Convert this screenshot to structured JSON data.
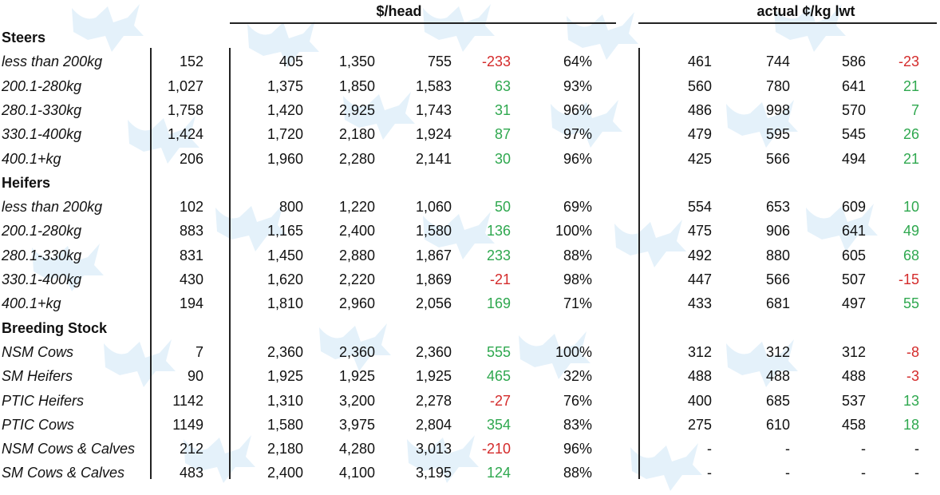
{
  "headers": {
    "dollar_head": "$/head",
    "cents_kg": "actual ¢/kg lwt"
  },
  "colors": {
    "positive": "#2fa84f",
    "negative": "#d42b2b",
    "watermark": "#cfe6f7"
  },
  "watermark_icon": "cattle-logo-icon",
  "rows": [
    {
      "type": "section",
      "label": "Steers"
    },
    {
      "type": "data",
      "label": "less than 200kg",
      "v": [
        "152",
        "405",
        "1,350",
        "755",
        "-233",
        "64%",
        "461",
        "744",
        "586",
        "-23"
      ]
    },
    {
      "type": "data",
      "label": "200.1-280kg",
      "v": [
        "1,027",
        "1,375",
        "1,850",
        "1,583",
        "63",
        "93%",
        "560",
        "780",
        "641",
        "21"
      ]
    },
    {
      "type": "data",
      "label": "280.1-330kg",
      "v": [
        "1,758",
        "1,420",
        "2,925",
        "1,743",
        "31",
        "96%",
        "486",
        "998",
        "570",
        "7"
      ]
    },
    {
      "type": "data",
      "label": "330.1-400kg",
      "v": [
        "1,424",
        "1,720",
        "2,180",
        "1,924",
        "87",
        "97%",
        "479",
        "595",
        "545",
        "26"
      ]
    },
    {
      "type": "data",
      "label": "400.1+kg",
      "v": [
        "206",
        "1,960",
        "2,280",
        "2,141",
        "30",
        "96%",
        "425",
        "566",
        "494",
        "21"
      ]
    },
    {
      "type": "section",
      "label": "Heifers"
    },
    {
      "type": "data",
      "label": "less than 200kg",
      "v": [
        "102",
        "800",
        "1,220",
        "1,060",
        "50",
        "69%",
        "554",
        "653",
        "609",
        "10"
      ]
    },
    {
      "type": "data",
      "label": "200.1-280kg",
      "v": [
        "883",
        "1,165",
        "2,400",
        "1,580",
        "136",
        "100%",
        "475",
        "906",
        "641",
        "49"
      ]
    },
    {
      "type": "data",
      "label": "280.1-330kg",
      "v": [
        "831",
        "1,450",
        "2,880",
        "1,867",
        "233",
        "88%",
        "492",
        "880",
        "605",
        "68"
      ]
    },
    {
      "type": "data",
      "label": "330.1-400kg",
      "v": [
        "430",
        "1,620",
        "2,220",
        "1,869",
        "-21",
        "98%",
        "447",
        "566",
        "507",
        "-15"
      ]
    },
    {
      "type": "data",
      "label": "400.1+kg",
      "v": [
        "194",
        "1,810",
        "2,960",
        "2,056",
        "169",
        "71%",
        "433",
        "681",
        "497",
        "55"
      ]
    },
    {
      "type": "section",
      "label": "Breeding Stock"
    },
    {
      "type": "data",
      "label": "NSM Cows",
      "v": [
        "7",
        "2,360",
        "2,360",
        "2,360",
        "555",
        "100%",
        "312",
        "312",
        "312",
        "-8"
      ]
    },
    {
      "type": "data",
      "label": "SM Heifers",
      "v": [
        "90",
        "1,925",
        "1,925",
        "1,925",
        "465",
        "32%",
        "488",
        "488",
        "488",
        "-3"
      ]
    },
    {
      "type": "data",
      "label": "PTIC Heifers",
      "v": [
        "1142",
        "1,310",
        "3,200",
        "2,278",
        "-27",
        "76%",
        "400",
        "685",
        "537",
        "13"
      ]
    },
    {
      "type": "data",
      "label": "PTIC Cows",
      "v": [
        "1149",
        "1,580",
        "3,975",
        "2,804",
        "354",
        "83%",
        "275",
        "610",
        "458",
        "18"
      ]
    },
    {
      "type": "data",
      "label": "NSM Cows & Calves",
      "v": [
        "212",
        "2,180",
        "4,280",
        "3,013",
        "-210",
        "96%",
        "-",
        "-",
        "-",
        "-"
      ]
    },
    {
      "type": "data",
      "label": "SM Cows & Calves",
      "v": [
        "483",
        "2,400",
        "4,100",
        "3,195",
        "124",
        "88%",
        "-",
        "-",
        "-",
        "-"
      ]
    }
  ]
}
